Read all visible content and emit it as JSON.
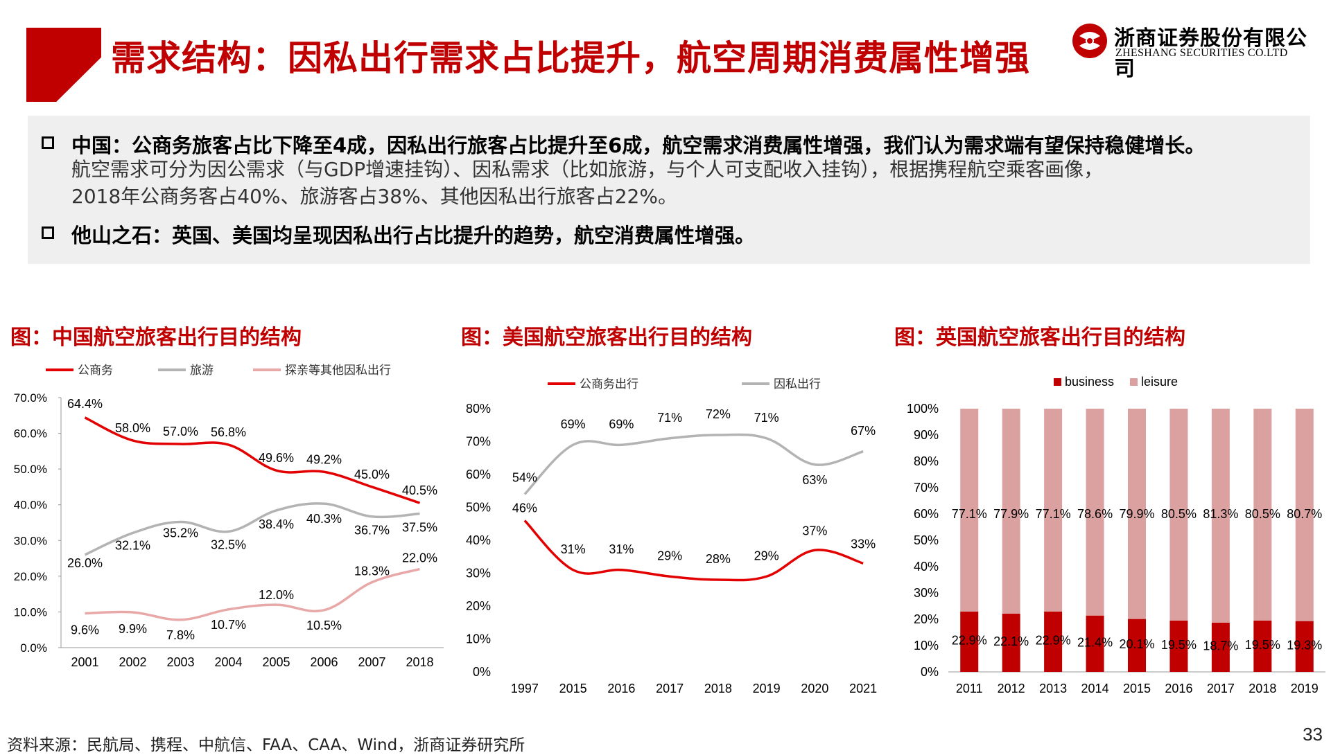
{
  "title": "需求结构：因私出行需求占比提升，航空周期消费属性增强",
  "logo": {
    "cn": "浙商证券股份有限公司",
    "en": "ZHESHANG SECURITIES CO.LTD",
    "icon": "zheshang-logo-icon"
  },
  "colors": {
    "accent": "#c00000",
    "red": "#e30000",
    "gray": "#b3b3b3",
    "pink": "#e8a8a8",
    "bar_business": "#c00000",
    "bar_leisure": "#dba1a1"
  },
  "summary": {
    "bullet1_title": "中国：公商务旅客占比下降至4成，因私出行旅客占比提升至6成，航空需求消费属性增强，我们认为需求端有望保持稳健增长。",
    "bullet1_line1": "航空需求可分为因公需求（与GDP增速挂钩）、因私需求（比如旅游，与个人可支配收入挂钩），根据携程航空乘客画像，",
    "bullet1_line2": "2018年公商务客占40%、旅游客占38%、其他因私出行旅客占22%。",
    "bullet2_title": "他山之石：英国、美国均呈现因私出行占比提升的趋势，航空消费属性增强。"
  },
  "charts": {
    "china_title": "图：中国航空旅客出行目的结构",
    "us_title": "图：美国航空旅客出行目的结构",
    "uk_title": "图：英国航空旅客出行目的结构"
  },
  "chart_data": [
    {
      "type": "line",
      "title": "图：中国航空旅客出行目的结构",
      "categories": [
        "2001",
        "2002",
        "2003",
        "2004",
        "2005",
        "2006",
        "2007",
        "2018"
      ],
      "yticks": [
        "0.0%",
        "10.0%",
        "20.0%",
        "30.0%",
        "40.0%",
        "50.0%",
        "60.0%",
        "70.0%"
      ],
      "ylim": [
        0,
        70
      ],
      "series": [
        {
          "name": "公商务",
          "values": [
            64.4,
            58.0,
            57.0,
            56.8,
            49.6,
            49.2,
            45.0,
            40.5
          ],
          "labels": [
            "64.4%",
            "58.0%",
            "57.0%",
            "56.8%",
            "49.6%",
            "49.2%",
            "45.0%",
            "40.5%"
          ],
          "color": "#e30000"
        },
        {
          "name": "旅游",
          "values": [
            26.0,
            32.1,
            35.2,
            32.5,
            38.4,
            40.3,
            36.7,
            37.5
          ],
          "labels": [
            "26.0%",
            "32.1%",
            "35.2%",
            "32.5%",
            "38.4%",
            "40.3%",
            "36.7%",
            "37.5%"
          ],
          "color": "#b3b3b3"
        },
        {
          "name": "探亲等其他因私出行",
          "values": [
            9.6,
            9.9,
            7.8,
            10.7,
            12.0,
            10.5,
            18.3,
            22.0
          ],
          "labels": [
            "9.6%",
            "9.9%",
            "7.8%",
            "10.7%",
            "12.0%",
            "10.5%",
            "18.3%",
            "22.0%"
          ],
          "color": "#e8a8a8"
        }
      ],
      "legend": "top"
    },
    {
      "type": "line",
      "title": "图：美国航空旅客出行目的结构",
      "categories": [
        "1997",
        "2015",
        "2016",
        "2017",
        "2018",
        "2019",
        "2020",
        "2021"
      ],
      "yticks": [
        "0%",
        "10%",
        "20%",
        "30%",
        "40%",
        "50%",
        "60%",
        "70%",
        "80%"
      ],
      "ylim": [
        0,
        80
      ],
      "series": [
        {
          "name": "公商务出行",
          "values": [
            46,
            31,
            31,
            29,
            28,
            29,
            37,
            33
          ],
          "labels": [
            "46%",
            "31%",
            "31%",
            "29%",
            "28%",
            "29%",
            "37%",
            "33%"
          ],
          "color": "#e30000"
        },
        {
          "name": "因私出行",
          "values": [
            54,
            69,
            69,
            71,
            72,
            71,
            63,
            67
          ],
          "labels": [
            "54%",
            "69%",
            "69%",
            "71%",
            "72%",
            "71%",
            "63%",
            "67%"
          ],
          "color": "#b3b3b3"
        }
      ],
      "legend": "top"
    },
    {
      "type": "bar",
      "stacked": true,
      "title": "图：英国航空旅客出行目的结构",
      "categories": [
        "2011",
        "2012",
        "2013",
        "2014",
        "2015",
        "2016",
        "2017",
        "2018",
        "2019"
      ],
      "yticks": [
        "0%",
        "10%",
        "20%",
        "30%",
        "40%",
        "50%",
        "60%",
        "70%",
        "80%",
        "90%",
        "100%"
      ],
      "ylim": [
        0,
        100
      ],
      "series": [
        {
          "name": "business",
          "values": [
            22.9,
            22.1,
            22.9,
            21.4,
            20.1,
            19.5,
            18.7,
            19.5,
            19.3
          ],
          "labels": [
            "22.9%",
            "22.1%",
            "22.9%",
            "21.4%",
            "20.1%",
            "19.5%",
            "18.7%",
            "19.5%",
            "19.3%"
          ],
          "color": "#c00000"
        },
        {
          "name": "leisure",
          "values": [
            77.1,
            77.9,
            77.1,
            78.6,
            79.9,
            80.5,
            81.3,
            80.5,
            80.7
          ],
          "labels": [
            "77.1%",
            "77.9%",
            "77.1%",
            "78.6%",
            "79.9%",
            "80.5%",
            "81.3%",
            "80.5%",
            "80.7%"
          ],
          "color": "#dba1a1"
        }
      ],
      "legend": "top"
    }
  ],
  "footer": {
    "source": "资料来源：民航局、携程、中航信、FAA、CAA、Wind，浙商证券研究所",
    "page": "33"
  }
}
